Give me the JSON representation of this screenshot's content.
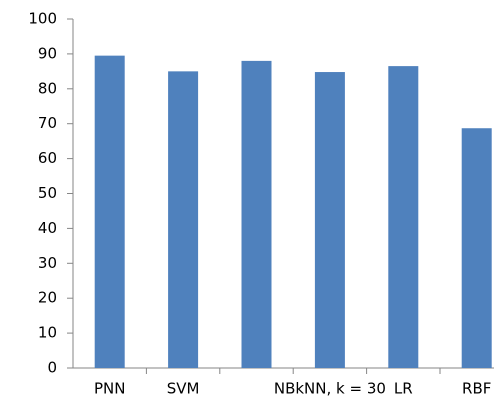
{
  "chart_data": {
    "type": "bar",
    "categories": [
      "PNN",
      "SVM",
      null,
      "NBkNN, k = 30",
      "LR",
      "RBF"
    ],
    "values": [
      89.5,
      85,
      88,
      84.8,
      86.5,
      68.7
    ],
    "color": "#4f81bd",
    "ylim": [
      0,
      100
    ],
    "yticks": [
      0,
      10,
      20,
      30,
      40,
      50,
      60,
      70,
      80,
      90,
      100
    ],
    "grid": false
  }
}
